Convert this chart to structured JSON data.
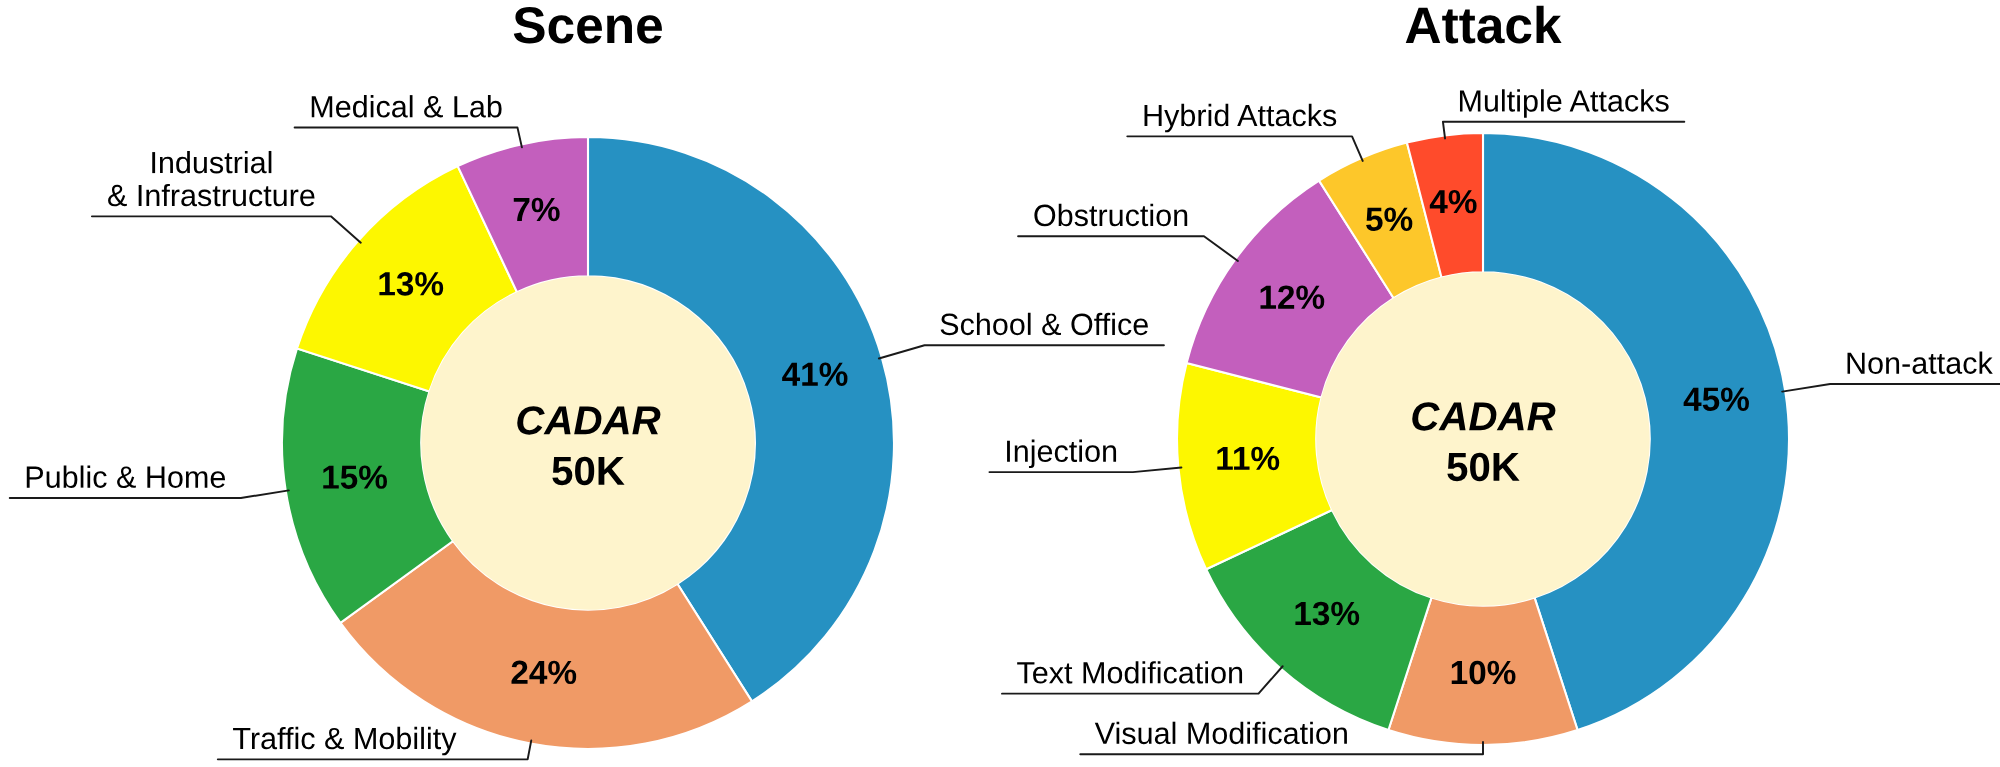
{
  "chart_data": [
    {
      "type": "donut",
      "title": "Scene",
      "categories": [
        "School & Office",
        "Traffic & Mobility",
        "Public & Home",
        "Industrial\n& Infrastructure",
        "Medical & Lab"
      ],
      "values": [
        41,
        24,
        15,
        13,
        7
      ],
      "colors": [
        "#2691c2",
        "#f09a66",
        "#2aa744",
        "#fdf700",
        "#c35fbd"
      ],
      "value_labels": [
        "41%",
        "24%",
        "15%",
        "13%",
        "7%"
      ],
      "annotations": [
        "CADAR",
        "50K"
      ]
    },
    {
      "type": "donut",
      "title": "Attack",
      "categories": [
        "Non-attack",
        "Visual Modification",
        "Text Modification",
        "Injection",
        "Obstruction",
        "Hybrid Attacks",
        "Multiple Attacks"
      ],
      "values": [
        45,
        10,
        13,
        11,
        12,
        5,
        4
      ],
      "colors": [
        "#2691c2",
        "#f09a66",
        "#2aa744",
        "#fdf700",
        "#c35fbd",
        "#fdc72a",
        "#ff4b2b"
      ],
      "value_labels": [
        "45%",
        "10%",
        "13%",
        "11%",
        "12%",
        "5%",
        "4%"
      ],
      "annotations": [
        "CADAR",
        "50K"
      ]
    }
  ]
}
